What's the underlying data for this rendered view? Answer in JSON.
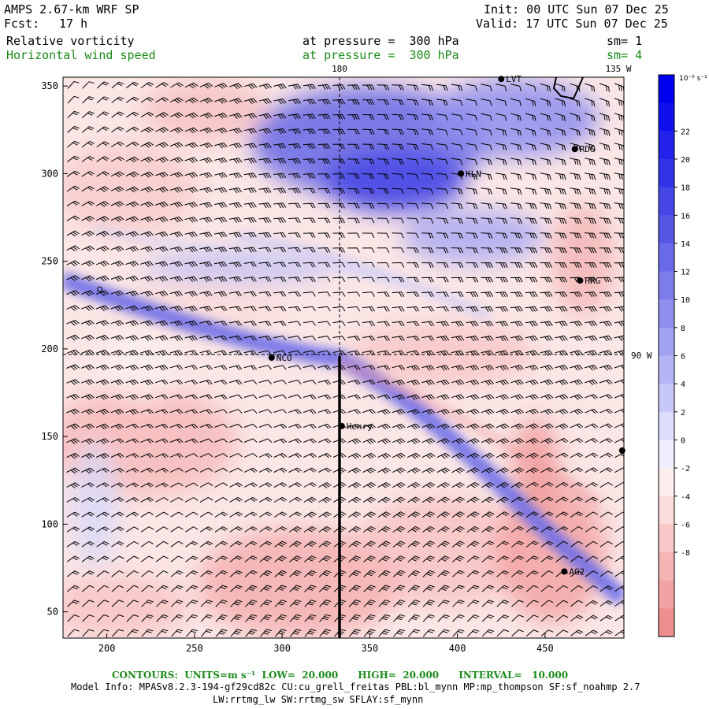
{
  "header": {
    "model": "AMPS 2.67-km WRF SP",
    "fcst_label": "Fcst:",
    "fcst_value": "17 h",
    "init": "Init: 00 UTC Sun 07 Dec 25",
    "valid": "Valid: 17 UTC Sun 07 Dec 25",
    "field1": "Relative vorticity",
    "field1_level": "at pressure =  300 hPa",
    "field1_sm": "sm= 1",
    "field2": "Horizontal wind speed",
    "field2_level": "at pressure =  300 hPa",
    "field2_sm": "sm= 4"
  },
  "map": {
    "top_labels": [
      "180",
      "135 W"
    ],
    "right_label": "90 W",
    "x_ticks": [
      200,
      250,
      300,
      350,
      400,
      450
    ],
    "y_ticks": [
      50,
      100,
      150,
      200,
      250,
      300,
      350
    ],
    "x_range": [
      175,
      495
    ],
    "y_range": [
      35,
      355
    ],
    "stations": [
      {
        "name": "LVT",
        "x": 425,
        "y": 354
      },
      {
        "name": "RDG",
        "x": 467,
        "y": 314
      },
      {
        "name": "KLN",
        "x": 402,
        "y": 300
      },
      {
        "name": "HRG",
        "x": 470,
        "y": 239
      },
      {
        "name": "NCO",
        "x": 294,
        "y": 195
      },
      {
        "name": "Henry",
        "x": 334,
        "y": 156
      },
      {
        "name": "",
        "x": 494,
        "y": 142
      },
      {
        "name": "AG2",
        "x": 461,
        "y": 73
      }
    ],
    "small_circle": {
      "x": 196,
      "y": 234
    }
  },
  "colorbar": {
    "unit": "10⁻⁵ s⁻¹",
    "ticks": [
      22,
      20,
      18,
      16,
      14,
      12,
      10,
      8,
      6,
      4,
      2,
      0,
      -2,
      -4,
      -6,
      -8
    ],
    "colors_blue": [
      "#0000f0",
      "#1010ee",
      "#2222ec",
      "#3333ea",
      "#4545e8",
      "#5757e6",
      "#6a6ae8",
      "#7c7cea",
      "#8f8fee",
      "#a2a2f2",
      "#b5b5f5",
      "#c8c8f8",
      "#dcdcfb",
      "#eeeefd"
    ],
    "colors_red": [
      "#fdeeee",
      "#fbdcdc",
      "#f8c8c8",
      "#f5b5b5",
      "#f2a2a2",
      "#ee8f8f"
    ]
  },
  "footer": {
    "contours": "CONTOURS:  UNITS=m s⁻¹  LOW=  20.000      HIGH=  20.000      INTERVAL=   10.000",
    "info1": "Model Info: MPASv8.2.3-194-gf29cd82c CU:cu_grell_freitas PBL:bl_mynn MP:mp_thompson SF:sf_noahmp 2.7",
    "info2": "LW:rrtmg_lw SW:rrtmg_sw SFLAY:sf_mynn"
  }
}
